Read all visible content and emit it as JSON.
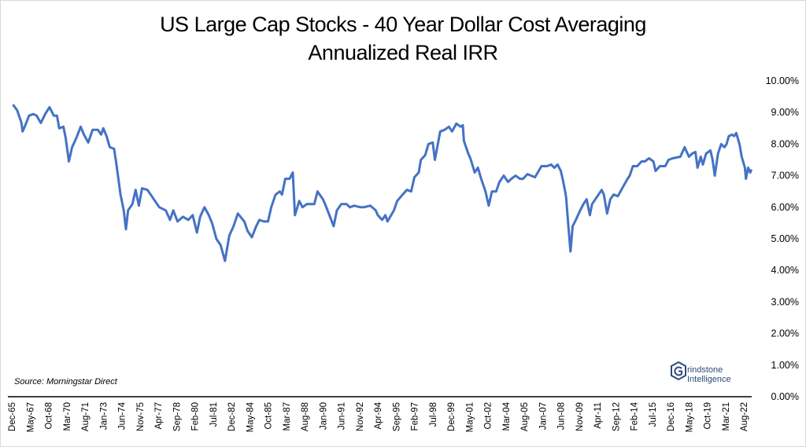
{
  "chart_data": {
    "type": "line",
    "title": "US Large Cap Stocks - 40 Year Dollar Cost Averaging",
    "subtitle": "Annualized Real IRR",
    "xlabel": "",
    "ylabel": "",
    "x_unit": "months since Dec-65",
    "xlim": [
      0,
      690
    ],
    "ylim": [
      0,
      10
    ],
    "grid": false,
    "legend": "none",
    "line_color": "#4472C4",
    "y_ticks": [
      "0.00%",
      "1.00%",
      "2.00%",
      "3.00%",
      "4.00%",
      "5.00%",
      "6.00%",
      "7.00%",
      "8.00%",
      "9.00%",
      "10.00%"
    ],
    "x_tick_step_months": 17,
    "x_ticks": [
      "Dec-65",
      "May-67",
      "Oct-68",
      "Mar-70",
      "Aug-71",
      "Jan-73",
      "Jun-74",
      "Nov-75",
      "Apr-77",
      "Sep-78",
      "Feb-80",
      "Jul-81",
      "Dec-82",
      "May-84",
      "Oct-85",
      "Mar-87",
      "Aug-88",
      "Jan-90",
      "Jun-91",
      "Nov-92",
      "Apr-94",
      "Sep-95",
      "Feb-97",
      "Jul-98",
      "Dec-99",
      "May-01",
      "Oct-02",
      "Mar-04",
      "Aug-05",
      "Jan-07",
      "Jun-08",
      "Nov-09",
      "Apr-11",
      "Sep-12",
      "Feb-14",
      "Jul-15",
      "Dec-16",
      "May-18",
      "Oct-19",
      "Mar-21",
      "Aug-22"
    ],
    "series": [
      {
        "name": "Annualized Real IRR (%)",
        "points": [
          [
            1,
            9.25
          ],
          [
            5,
            9.07
          ],
          [
            9,
            8.67
          ],
          [
            10,
            8.4
          ],
          [
            12,
            8.55
          ],
          [
            16,
            8.9
          ],
          [
            20,
            8.95
          ],
          [
            23,
            8.9
          ],
          [
            27,
            8.67
          ],
          [
            31,
            8.95
          ],
          [
            35,
            9.17
          ],
          [
            39,
            8.9
          ],
          [
            42,
            8.9
          ],
          [
            44,
            8.5
          ],
          [
            48,
            8.55
          ],
          [
            50,
            8.2
          ],
          [
            53,
            7.45
          ],
          [
            56,
            7.9
          ],
          [
            60,
            8.2
          ],
          [
            64,
            8.55
          ],
          [
            67,
            8.3
          ],
          [
            71,
            8.05
          ],
          [
            75,
            8.45
          ],
          [
            80,
            8.45
          ],
          [
            83,
            8.3
          ],
          [
            85,
            8.5
          ],
          [
            88,
            8.25
          ],
          [
            91,
            7.9
          ],
          [
            95,
            7.85
          ],
          [
            97,
            7.4
          ],
          [
            101,
            6.4
          ],
          [
            104,
            5.9
          ],
          [
            106,
            5.3
          ],
          [
            108,
            5.9
          ],
          [
            112,
            6.1
          ],
          [
            115,
            6.55
          ],
          [
            118,
            6.05
          ],
          [
            121,
            6.6
          ],
          [
            126,
            6.55
          ],
          [
            129,
            6.4
          ],
          [
            133,
            6.2
          ],
          [
            137,
            6.0
          ],
          [
            143,
            5.9
          ],
          [
            147,
            5.6
          ],
          [
            150,
            5.9
          ],
          [
            154,
            5.55
          ],
          [
            159,
            5.7
          ],
          [
            164,
            5.6
          ],
          [
            168,
            5.75
          ],
          [
            172,
            5.2
          ],
          [
            175,
            5.7
          ],
          [
            179,
            6.0
          ],
          [
            183,
            5.75
          ],
          [
            186,
            5.5
          ],
          [
            190,
            5.0
          ],
          [
            194,
            4.8
          ],
          [
            198,
            4.3
          ],
          [
            202,
            5.1
          ],
          [
            206,
            5.4
          ],
          [
            210,
            5.8
          ],
          [
            216,
            5.55
          ],
          [
            219,
            5.25
          ],
          [
            223,
            5.05
          ],
          [
            227,
            5.4
          ],
          [
            230,
            5.6
          ],
          [
            234,
            5.55
          ],
          [
            238,
            5.55
          ],
          [
            241,
            6.0
          ],
          [
            245,
            6.4
          ],
          [
            249,
            6.5
          ],
          [
            251,
            6.4
          ],
          [
            254,
            6.9
          ],
          [
            258,
            6.9
          ],
          [
            261,
            7.1
          ],
          [
            263,
            5.75
          ],
          [
            267,
            6.2
          ],
          [
            270,
            6.0
          ],
          [
            274,
            6.1
          ],
          [
            278,
            6.1
          ],
          [
            281,
            6.1
          ],
          [
            284,
            6.5
          ],
          [
            289,
            6.25
          ],
          [
            291,
            6.1
          ],
          [
            295,
            5.75
          ],
          [
            299,
            5.4
          ],
          [
            302,
            5.9
          ],
          [
            306,
            6.1
          ],
          [
            311,
            6.1
          ],
          [
            314,
            6.0
          ],
          [
            318,
            6.05
          ],
          [
            324,
            6.0
          ],
          [
            327,
            6.0
          ],
          [
            333,
            6.05
          ],
          [
            338,
            5.9
          ],
          [
            340,
            5.75
          ],
          [
            344,
            5.6
          ],
          [
            347,
            5.75
          ],
          [
            349,
            5.55
          ],
          [
            355,
            5.9
          ],
          [
            358,
            6.2
          ],
          [
            363,
            6.4
          ],
          [
            367,
            6.55
          ],
          [
            371,
            6.5
          ],
          [
            374,
            6.95
          ],
          [
            378,
            7.1
          ],
          [
            380,
            7.5
          ],
          [
            384,
            7.65
          ],
          [
            387,
            8.0
          ],
          [
            391,
            8.05
          ],
          [
            393,
            7.5
          ],
          [
            398,
            8.4
          ],
          [
            402,
            8.45
          ],
          [
            406,
            8.55
          ],
          [
            409,
            8.4
          ],
          [
            413,
            8.65
          ],
          [
            417,
            8.55
          ],
          [
            419,
            8.6
          ],
          [
            420,
            8.1
          ],
          [
            424,
            7.7
          ],
          [
            426,
            7.55
          ],
          [
            430,
            7.1
          ],
          [
            433,
            7.25
          ],
          [
            436,
            6.9
          ],
          [
            440,
            6.5
          ],
          [
            443,
            6.05
          ],
          [
            446,
            6.5
          ],
          [
            450,
            6.5
          ],
          [
            453,
            6.8
          ],
          [
            457,
            7.0
          ],
          [
            461,
            6.8
          ],
          [
            464,
            6.9
          ],
          [
            468,
            7.0
          ],
          [
            472,
            6.9
          ],
          [
            475,
            6.9
          ],
          [
            479,
            7.05
          ],
          [
            486,
            6.95
          ],
          [
            492,
            7.3
          ],
          [
            497,
            7.3
          ],
          [
            501,
            7.35
          ],
          [
            504,
            7.25
          ],
          [
            507,
            7.35
          ],
          [
            510,
            7.15
          ],
          [
            512,
            6.85
          ],
          [
            514,
            6.5
          ],
          [
            515,
            6.3
          ],
          [
            517,
            5.4
          ],
          [
            519,
            4.6
          ],
          [
            521,
            5.4
          ],
          [
            524,
            5.6
          ],
          [
            528,
            5.9
          ],
          [
            531,
            6.1
          ],
          [
            534,
            6.25
          ],
          [
            537,
            5.75
          ],
          [
            539,
            6.1
          ],
          [
            541,
            6.2
          ],
          [
            545,
            6.4
          ],
          [
            548,
            6.55
          ],
          [
            550,
            6.4
          ],
          [
            553,
            5.8
          ],
          [
            556,
            6.25
          ],
          [
            559,
            6.4
          ],
          [
            563,
            6.35
          ],
          [
            567,
            6.6
          ],
          [
            572,
            6.9
          ],
          [
            574,
            7.0
          ],
          [
            577,
            7.3
          ],
          [
            581,
            7.3
          ],
          [
            585,
            7.45
          ],
          [
            588,
            7.45
          ],
          [
            592,
            7.55
          ],
          [
            596,
            7.45
          ],
          [
            598,
            7.15
          ],
          [
            602,
            7.3
          ],
          [
            607,
            7.3
          ],
          [
            610,
            7.5
          ],
          [
            614,
            7.55
          ],
          [
            621,
            7.6
          ],
          [
            625,
            7.9
          ],
          [
            629,
            7.6
          ],
          [
            632,
            7.7
          ],
          [
            635,
            7.75
          ],
          [
            637,
            7.25
          ],
          [
            640,
            7.6
          ],
          [
            642,
            7.35
          ],
          [
            645,
            7.7
          ],
          [
            649,
            7.8
          ],
          [
            651,
            7.5
          ],
          [
            653,
            7.0
          ],
          [
            656,
            7.7
          ],
          [
            659,
            8.0
          ],
          [
            662,
            7.9
          ],
          [
            664,
            8.0
          ],
          [
            666,
            8.25
          ],
          [
            669,
            8.3
          ],
          [
            671,
            8.25
          ],
          [
            673,
            8.35
          ],
          [
            676,
            8.0
          ],
          [
            678,
            7.6
          ],
          [
            681,
            7.25
          ],
          [
            682,
            6.9
          ],
          [
            684,
            7.25
          ],
          [
            686,
            7.1
          ],
          [
            687,
            7.2
          ]
        ]
      }
    ]
  },
  "source": "Source: Morningstar Direct",
  "logo": {
    "line1": "rindstone",
    "line2": "Intelligence",
    "color": "#2E4A7A"
  }
}
